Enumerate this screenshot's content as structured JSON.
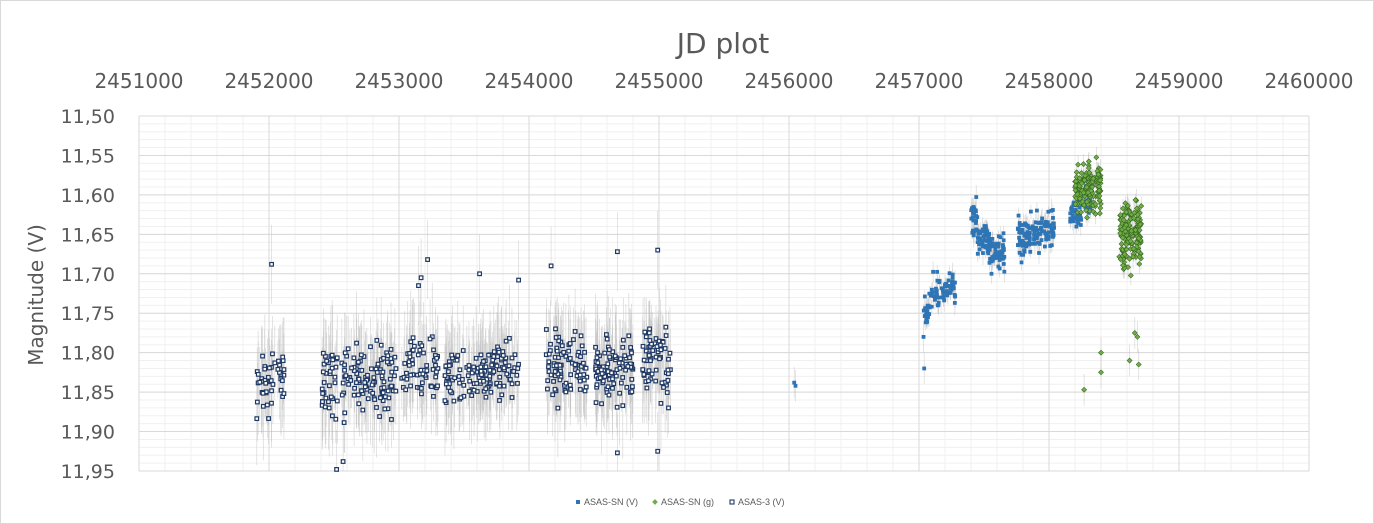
{
  "chart_data": {
    "type": "scatter",
    "title": "JD plot",
    "xlabel": "",
    "ylabel": "Magnitude (V)",
    "xlim": [
      2451000,
      2460000
    ],
    "ylim": [
      11.5,
      11.95
    ],
    "y_inverted": true,
    "x_axis_position": "top",
    "x_ticks": [
      "2451000",
      "2452000",
      "2453000",
      "2454000",
      "2455000",
      "2456000",
      "2457000",
      "2458000",
      "2459000",
      "2460000"
    ],
    "y_ticks": [
      "11,50",
      "11,55",
      "11,60",
      "11,65",
      "11,70",
      "11,75",
      "11,80",
      "11,85",
      "11,90",
      "11,95"
    ],
    "grid": true,
    "legend_position": "bottom",
    "series": [
      {
        "name": "ASAS-SN (V)",
        "color": "#2e75b6",
        "marker": "square",
        "error_bars": true,
        "segments": [
          {
            "x0": 2457030,
            "x1": 2457090,
            "y_center": 11.745,
            "y_spread": 0.035,
            "n": 20
          },
          {
            "x0": 2457090,
            "x1": 2457280,
            "y_center": 11.72,
            "y_spread": 0.03,
            "n": 55
          },
          {
            "x0": 2457400,
            "x1": 2457450,
            "y_center": 11.63,
            "y_spread": 0.04,
            "n": 25
          },
          {
            "x0": 2457450,
            "x1": 2457540,
            "y_center": 11.655,
            "y_spread": 0.03,
            "n": 45
          },
          {
            "x0": 2457540,
            "x1": 2457660,
            "y_center": 11.675,
            "y_spread": 0.035,
            "n": 55
          },
          {
            "x0": 2457760,
            "x1": 2457860,
            "y_center": 11.655,
            "y_spread": 0.035,
            "n": 55
          },
          {
            "x0": 2457860,
            "x1": 2458040,
            "y_center": 11.645,
            "y_spread": 0.035,
            "n": 75
          },
          {
            "x0": 2458160,
            "x1": 2458250,
            "y_center": 11.625,
            "y_spread": 0.025,
            "n": 35
          },
          {
            "x0": 2458250,
            "x1": 2458330,
            "y_center": 11.605,
            "y_spread": 0.03,
            "n": 35
          }
        ],
        "outliers": [
          {
            "x": 2456040,
            "y": 11.838
          },
          {
            "x": 2456050,
            "y": 11.842
          },
          {
            "x": 2457040,
            "y": 11.82
          },
          {
            "x": 2457035,
            "y": 11.78
          },
          {
            "x": 2457170,
            "y": 11.73
          }
        ]
      },
      {
        "name": "ASAS-SN (g)",
        "color": "#70ad47",
        "marker": "diamond",
        "error_bars": true,
        "segments": [
          {
            "x0": 2458200,
            "x1": 2458400,
            "y_center": 11.59,
            "y_spread": 0.045,
            "n": 150
          },
          {
            "x0": 2458540,
            "x1": 2458710,
            "y_center": 11.65,
            "y_spread": 0.06,
            "n": 160
          }
        ],
        "outliers": [
          {
            "x": 2458270,
            "y": 11.847
          },
          {
            "x": 2458400,
            "y": 11.825
          },
          {
            "x": 2458400,
            "y": 11.8
          },
          {
            "x": 2458620,
            "y": 11.81
          },
          {
            "x": 2458660,
            "y": 11.775
          },
          {
            "x": 2458680,
            "y": 11.78
          },
          {
            "x": 2458690,
            "y": 11.815
          }
        ]
      },
      {
        "name": "ASAS-3 (V)",
        "color": "#1f3864",
        "marker": "hollow-square",
        "error_bars": true,
        "segments": [
          {
            "x0": 2451900,
            "x1": 2452120,
            "y_center": 11.835,
            "y_spread": 0.06,
            "n": 45
          },
          {
            "x0": 2452400,
            "x1": 2452580,
            "y_center": 11.84,
            "y_spread": 0.06,
            "n": 40
          },
          {
            "x0": 2452580,
            "x1": 2452990,
            "y_center": 11.835,
            "y_spread": 0.06,
            "n": 110
          },
          {
            "x0": 2453020,
            "x1": 2453300,
            "y_center": 11.82,
            "y_spread": 0.06,
            "n": 60
          },
          {
            "x0": 2453350,
            "x1": 2453720,
            "y_center": 11.83,
            "y_spread": 0.055,
            "n": 95
          },
          {
            "x0": 2453720,
            "x1": 2453920,
            "y_center": 11.82,
            "y_spread": 0.055,
            "n": 50
          },
          {
            "x0": 2454130,
            "x1": 2454450,
            "y_center": 11.815,
            "y_spread": 0.06,
            "n": 90
          },
          {
            "x0": 2454510,
            "x1": 2454800,
            "y_center": 11.82,
            "y_spread": 0.06,
            "n": 95
          },
          {
            "x0": 2454870,
            "x1": 2455090,
            "y_center": 11.815,
            "y_spread": 0.065,
            "n": 65
          }
        ],
        "outliers": [
          {
            "x": 2452020,
            "y": 11.688
          },
          {
            "x": 2452520,
            "y": 11.948
          },
          {
            "x": 2452570,
            "y": 11.938
          },
          {
            "x": 2453150,
            "y": 11.715
          },
          {
            "x": 2453170,
            "y": 11.705
          },
          {
            "x": 2453220,
            "y": 11.682
          },
          {
            "x": 2453620,
            "y": 11.7
          },
          {
            "x": 2453920,
            "y": 11.708
          },
          {
            "x": 2454170,
            "y": 11.69
          },
          {
            "x": 2454680,
            "y": 11.672
          },
          {
            "x": 2454990,
            "y": 11.67
          },
          {
            "x": 2454680,
            "y": 11.927
          },
          {
            "x": 2454990,
            "y": 11.925
          }
        ]
      }
    ]
  }
}
